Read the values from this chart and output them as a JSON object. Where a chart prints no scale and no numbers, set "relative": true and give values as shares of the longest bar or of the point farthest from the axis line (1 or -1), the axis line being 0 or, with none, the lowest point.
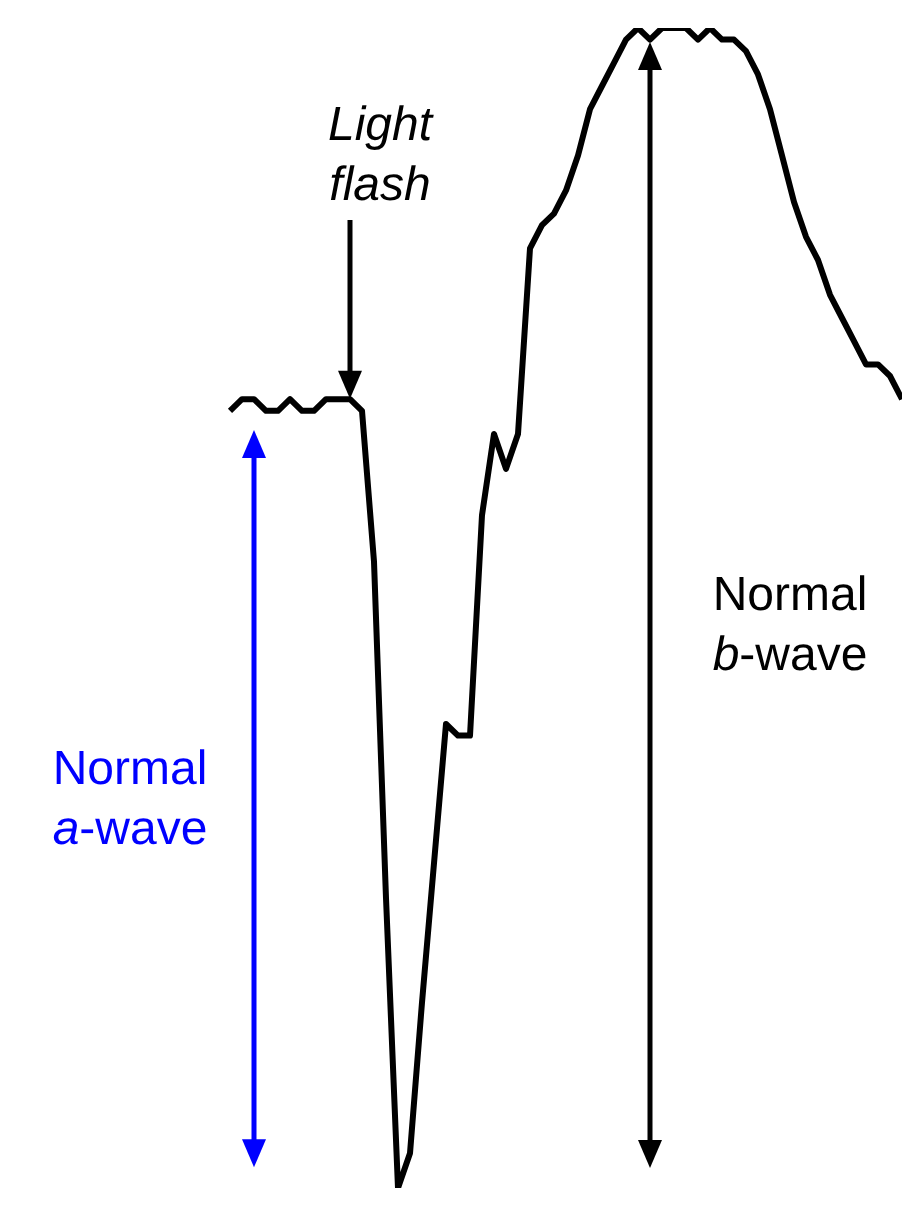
{
  "chart_data": {
    "type": "line",
    "relative": true,
    "categories": [
      null,
      null,
      null,
      null,
      null,
      null,
      null,
      null,
      null,
      null,
      null,
      null,
      null,
      null,
      null,
      null,
      null,
      null,
      null,
      null,
      null,
      null,
      null,
      null,
      null,
      null,
      null,
      null,
      null,
      null,
      null,
      null,
      null,
      null,
      null,
      null,
      null,
      null,
      null,
      null,
      null,
      null,
      null,
      null,
      null,
      null,
      null,
      null,
      null,
      null,
      null,
      null,
      null,
      null,
      null,
      null,
      null
    ],
    "series": [
      {
        "color": "#000000",
        "values": [
          0.67,
          0.68,
          0.68,
          0.67,
          0.67,
          0.68,
          0.67,
          0.67,
          0.68,
          0.68,
          0.68,
          0.67,
          0.54,
          0.25,
          0,
          0.03,
          0.16,
          0.28,
          0.4,
          0.39,
          0.39,
          0.58,
          0.65,
          0.62,
          0.65,
          0.81,
          0.83,
          0.84,
          0.86,
          0.89,
          0.93,
          0.95,
          0.97,
          0.99,
          1.0,
          0.99,
          1.0,
          1.0,
          1.0,
          0.99,
          1.0,
          0.99,
          0.99,
          0.98,
          0.96,
          0.93,
          0.89,
          0.85,
          0.82,
          0.8,
          0.77,
          0.75,
          0.73,
          0.71,
          0.71,
          0.7,
          0.68
        ]
      }
    ],
    "annotations": [
      "Light flash",
      "Normal a-wave",
      "Normal b-wave"
    ],
    "marker": "none",
    "line_style": "solid",
    "legend": false
  }
}
